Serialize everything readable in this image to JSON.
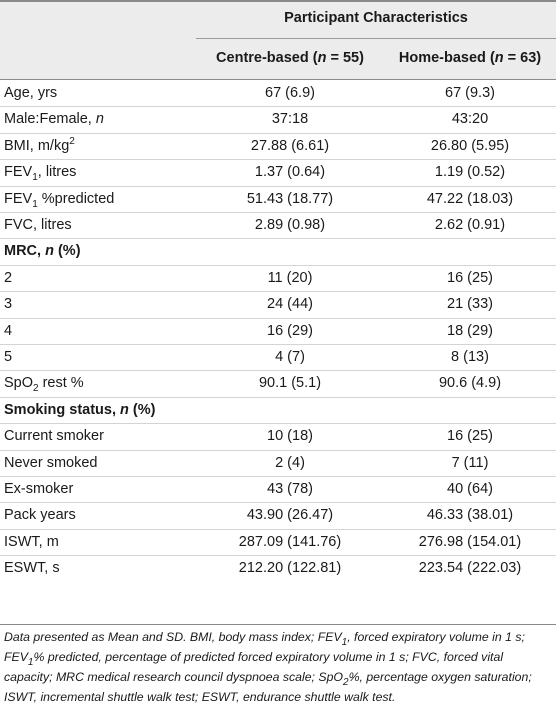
{
  "header": {
    "group_title": "Participant Characteristics",
    "col1_label": "Centre-based",
    "col1_n": "(n = 55)",
    "col2_label": "Home-based",
    "col2_n": "(n = 63)"
  },
  "rows": [
    {
      "label": "Age, yrs",
      "c1": "67 (6.9)",
      "c2": "67 (9.3)"
    },
    {
      "label": "Male:Female, n",
      "c1": "37:18",
      "c2": "43:20"
    },
    {
      "label": "BMI, m/kg2",
      "c1": "27.88 (6.61)",
      "c2": "26.80 (5.95)"
    },
    {
      "label": "FEV1, litres",
      "c1": "1.37 (0.64)",
      "c2": "1.19 (0.52)"
    },
    {
      "label": "FEV1 %predicted",
      "c1": "51.43 (18.77)",
      "c2": "47.22 (18.03)"
    },
    {
      "label": "FVC, litres",
      "c1": "2.89 (0.98)",
      "c2": "2.62 (0.91)"
    },
    {
      "label": "MRC, n (%)",
      "c1": "",
      "c2": ""
    },
    {
      "label": "2",
      "c1": "11 (20)",
      "c2": "16 (25)"
    },
    {
      "label": "3",
      "c1": "24 (44)",
      "c2": "21 (33)"
    },
    {
      "label": "4",
      "c1": "16 (29)",
      "c2": "18 (29)"
    },
    {
      "label": "5",
      "c1": "4 (7)",
      "c2": "8 (13)"
    },
    {
      "label": "SpO2 rest %",
      "c1": "90.1 (5.1)",
      "c2": "90.6 (4.9)"
    },
    {
      "label": "Smoking status, n (%)",
      "c1": "",
      "c2": ""
    },
    {
      "label": "Current smoker",
      "c1": "10 (18)",
      "c2": "16 (25)"
    },
    {
      "label": "Never smoked",
      "c1": "2 (4)",
      "c2": "7 (11)"
    },
    {
      "label": "Ex-smoker",
      "c1": "43 (78)",
      "c2": "40 (64)"
    },
    {
      "label": "Pack years",
      "c1": "43.90 (26.47)",
      "c2": "46.33 (38.01)"
    },
    {
      "label": "ISWT, m",
      "c1": "287.09 (141.76)",
      "c2": "276.98 (154.01)"
    },
    {
      "label": "ESWT, s",
      "c1": "212.20 (122.81)",
      "c2": "223.54 (222.03)"
    }
  ],
  "footnote": "Data presented as Mean and SD. BMI, body mass index; FEV1, forced expiratory volume in 1 s; FEV1% predicted, percentage of predicted forced expiratory volume in 1 s; FVC, forced vital capacity; MRC medical research council dyspnoea scale; SpO2%, percentage oxygen saturation; ISWT, incremental shuttle walk test; ESWT, endurance shuttle walk test."
}
